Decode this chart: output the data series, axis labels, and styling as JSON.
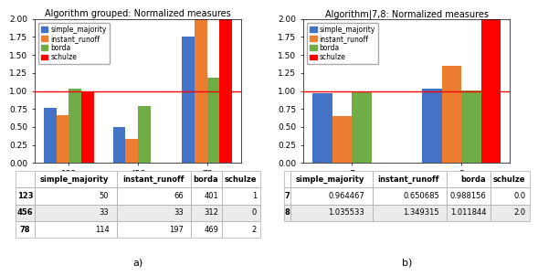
{
  "left_chart": {
    "title": "Algorithm grouped: Normalized measures",
    "categories": [
      "123",
      "456",
      "78"
    ],
    "algorithms": [
      "simple_majority",
      "instant_runoff",
      "borda",
      "schulze"
    ],
    "colors": [
      "#4472c4",
      "#ed7d31",
      "#70ad47",
      "#ff0000"
    ],
    "values": {
      "123": [
        0.76,
        0.67,
        1.03,
        1.0
      ],
      "456": [
        0.5,
        0.33,
        0.79,
        0.001
      ],
      "78": [
        1.75,
        2.0,
        1.18,
        2.0
      ]
    },
    "ylim": [
      0.0,
      2.0
    ],
    "yticks": [
      0.0,
      0.25,
      0.5,
      0.75,
      1.0,
      1.25,
      1.5,
      1.75,
      2.0
    ],
    "yticklabels": [
      "0.00",
      "0.25",
      "0.50",
      "0.75",
      "1.00",
      "1.25",
      "1.50",
      "1.75",
      "2.00"
    ]
  },
  "right_chart": {
    "title": "Algorithm|7,8: Normalized measures",
    "categories": [
      "7",
      "8"
    ],
    "algorithms": [
      "simple_majority",
      "instant_runoff",
      "borda",
      "schulze"
    ],
    "colors": [
      "#4472c4",
      "#ed7d31",
      "#70ad47",
      "#ff0000"
    ],
    "values": {
      "7": [
        0.964467,
        0.650685,
        0.988156,
        0.001
      ],
      "8": [
        1.035533,
        1.349315,
        1.011844,
        2.0
      ]
    },
    "ylim": [
      0.0,
      2.0
    ],
    "yticks": [
      0.0,
      0.25,
      0.5,
      0.75,
      1.0,
      1.25,
      1.5,
      1.75,
      2.0
    ],
    "yticklabels": [
      "0.00",
      "0.25",
      "0.50",
      "0.75",
      "1.00",
      "1.25",
      "1.50",
      "1.75",
      "2.00"
    ]
  },
  "left_table": {
    "col_labels": [
      "",
      "simple_majority",
      "instant_runoff",
      "borda",
      "schulze"
    ],
    "rows": [
      [
        "123",
        "50",
        "66",
        "401",
        "1"
      ],
      [
        "456",
        "33",
        "33",
        "312",
        "0"
      ],
      [
        "78",
        "114",
        "197",
        "469",
        "2"
      ]
    ],
    "row_colors": [
      "#ffffff",
      "#ebebeb",
      "#ffffff"
    ],
    "header_color": "#ffffff"
  },
  "right_table": {
    "col_labels": [
      "",
      "simple_majority",
      "instant_runoff",
      "borda",
      "schulze"
    ],
    "rows": [
      [
        "7",
        "0.964467",
        "0.650685",
        "0.988156",
        "0.0"
      ],
      [
        "8",
        "1.035533",
        "1.349315",
        "1.011844",
        "2.0"
      ]
    ],
    "row_colors": [
      "#ffffff",
      "#ebebeb"
    ],
    "header_color": "#ffffff"
  },
  "hline_color": "#ff0000",
  "hline_y": 1.0,
  "label_a": "a)",
  "label_b": "b)",
  "bar_width": 0.18,
  "legend_fontsize": 5.5,
  "tick_fontsize": 6.5,
  "title_fontsize": 7,
  "table_fontsize": 6
}
